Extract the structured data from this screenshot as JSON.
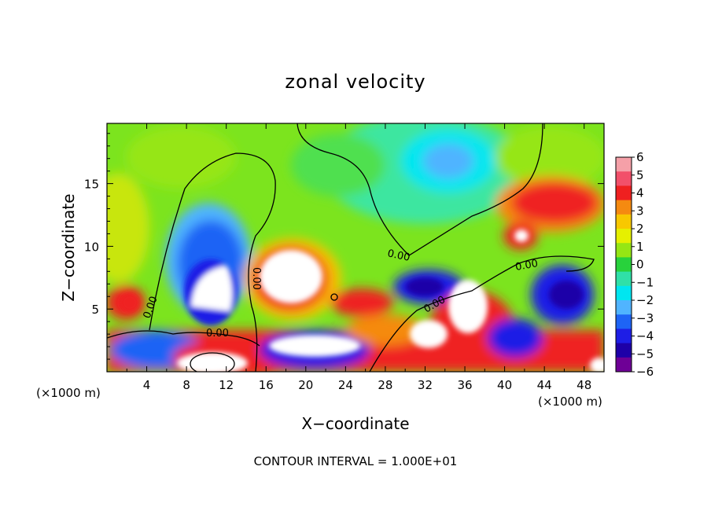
{
  "chart_data": {
    "type": "heatmap",
    "title": "zonal velocity",
    "xlabel": "X−coordinate",
    "ylabel": "Z−coordinate",
    "x_unit_label": "(×1000 m)",
    "x_unit_label_right": "(×1000 m)",
    "xlim": [
      0,
      50
    ],
    "ylim": [
      0,
      19.8
    ],
    "x_ticks": [
      "4",
      "8",
      "12",
      "16",
      "20",
      "24",
      "28",
      "32",
      "36",
      "40",
      "44",
      "48"
    ],
    "x_tick_values": [
      4,
      8,
      12,
      16,
      20,
      24,
      28,
      32,
      36,
      40,
      44,
      48
    ],
    "y_ticks": [
      "5",
      "10",
      "15"
    ],
    "y_tick_values": [
      5,
      10,
      15
    ],
    "colorbar": {
      "levels": [
        "6",
        "5",
        "4",
        "3",
        "2",
        "1",
        "0",
        "−1",
        "−2",
        "−3",
        "−4",
        "−5",
        "−6"
      ],
      "colors": [
        "#f5a0a8",
        "#f2506a",
        "#ef2020",
        "#f58a10",
        "#f8c800",
        "#e6f000",
        "#96e614",
        "#28d23c",
        "#30e0a8",
        "#00e6f0",
        "#50b4ff",
        "#1e64f5",
        "#1e1ee6",
        "#1e00a8",
        "#6e0096"
      ]
    },
    "contour_label": "0.00",
    "footer": "CONTOUR INTERVAL = 1.000E+01"
  }
}
